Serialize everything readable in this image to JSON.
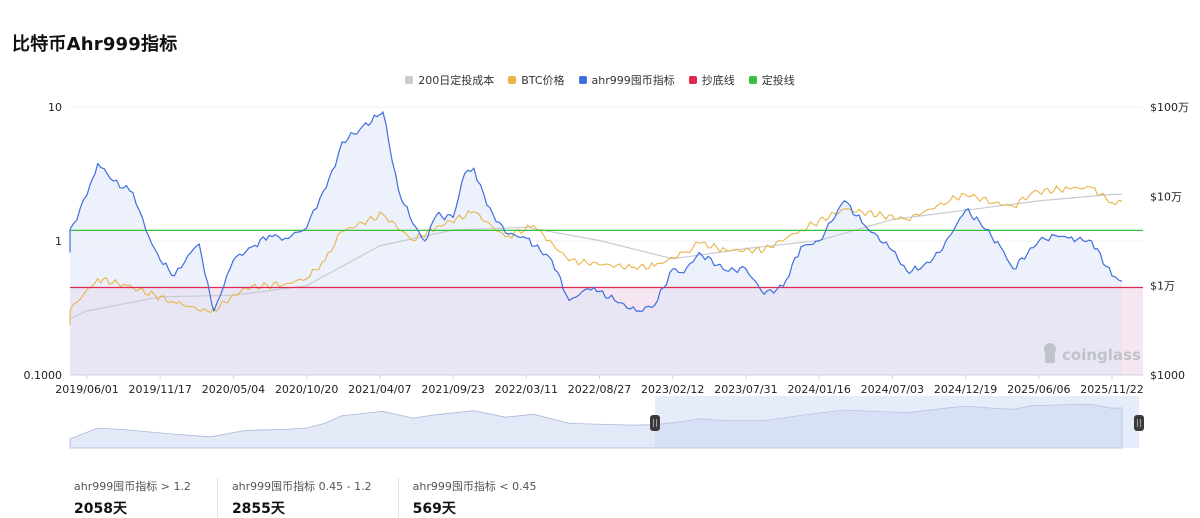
{
  "page": {
    "title": "比特币Ahr999指标"
  },
  "legend": [
    {
      "label": "200日定投成本",
      "color": "#c8ccd2"
    },
    {
      "label": "BTC价格",
      "color": "#e8b54a"
    },
    {
      "label": "ahr999囤币指标",
      "color": "#3f6fdc"
    },
    {
      "label": "抄底线",
      "color": "#e0294f"
    },
    {
      "label": "定投线",
      "color": "#3cbf3c"
    }
  ],
  "watermark": "coinglass",
  "stats": [
    {
      "label": "ahr999囤币指标 > 1.2",
      "value": "2058天"
    },
    {
      "label": "ahr999囤币指标 0.45 - 1.2",
      "value": "2855天"
    },
    {
      "label": "ahr999囤币指标 < 0.45",
      "value": "569天"
    }
  ],
  "chart_data": {
    "type": "line",
    "x_tick_labels": [
      "2019/06/01",
      "2019/11/17",
      "2020/05/04",
      "2020/10/20",
      "2021/04/07",
      "2021/09/23",
      "2022/03/11",
      "2022/08/27",
      "2023/02/12",
      "2023/07/31",
      "2024/01/16",
      "2024/07/03",
      "2024/12/19",
      "2025/06/06",
      "2025/11/22"
    ],
    "y_left": {
      "scale": "log",
      "range": [
        0.1,
        10
      ],
      "tick_labels": [
        "10",
        "1",
        "0.1000"
      ]
    },
    "y_right": {
      "scale": "log",
      "range": [
        1000,
        1000000
      ],
      "tick_labels": [
        "$100万",
        "$10万",
        "$1万",
        "$1000"
      ]
    },
    "reference_lines": [
      {
        "name": "定投线",
        "value": 1.2,
        "axis": "left"
      },
      {
        "name": "抄底线",
        "value": 0.45,
        "axis": "left"
      }
    ],
    "series": [
      {
        "name": "ahr999囤币指标",
        "axis": "left",
        "x": [
          "2019/01/01",
          "2019/03/15",
          "2019/05/01",
          "2019/06/01",
          "2019/06/26",
          "2019/08/01",
          "2019/09/15",
          "2019/10/15",
          "2019/11/17",
          "2019/12/20",
          "2020/01/20",
          "2020/02/15",
          "2020/03/12",
          "2020/03/20",
          "2020/05/04",
          "2020/06/15",
          "2020/07/25",
          "2020/09/01",
          "2020/10/20",
          "2020/11/20",
          "2020/12/25",
          "2021/01/10",
          "2021/02/20",
          "2021/04/07",
          "2021/04/14",
          "2021/05/20",
          "2021/06/22",
          "2021/07/20",
          "2021/08/15",
          "2021/09/23",
          "2021/10/20",
          "2021/11/10",
          "2021/12/10",
          "2022/01/22",
          "2022/03/11",
          "2022/05/09",
          "2022/06/18",
          "2022/08/01",
          "2022/08/27",
          "2022/10/01",
          "2022/11/20",
          "2023/01/01",
          "2023/02/12",
          "2023/03/10",
          "2023/04/14",
          "2023/06/15",
          "2023/07/31",
          "2023/09/11",
          "2023/10/25",
          "2023/12/05",
          "2024/01/16",
          "2024/03/14",
          "2024/05/01",
          "2024/07/03",
          "2024/08/05",
          "2024/09/06",
          "2024/10/20",
          "2024/12/19",
          "2025/01/20",
          "2025/03/10",
          "2025/04/08",
          "2025/06/06",
          "2025/07/14",
          "2025/08/14",
          "2025/10/06",
          "2025/11/22",
          "2025/12/15"
        ],
        "values": [
          0.85,
          0.88,
          1.35,
          2.2,
          3.8,
          2.8,
          2.3,
          1.2,
          0.72,
          0.55,
          0.78,
          0.95,
          0.38,
          0.3,
          0.72,
          0.9,
          1.1,
          1.05,
          1.25,
          2.1,
          3.6,
          5.5,
          6.8,
          8.8,
          9.2,
          2.4,
          1.35,
          1.0,
          1.55,
          1.5,
          3.2,
          3.5,
          1.85,
          1.15,
          1.05,
          0.72,
          0.36,
          0.44,
          0.42,
          0.36,
          0.3,
          0.33,
          0.62,
          0.58,
          0.82,
          0.6,
          0.62,
          0.4,
          0.46,
          0.9,
          1.0,
          2.0,
          1.3,
          0.85,
          0.6,
          0.62,
          0.82,
          1.7,
          1.4,
          0.9,
          0.62,
          1.0,
          1.1,
          1.05,
          1.0,
          0.55,
          0.5
        ]
      },
      {
        "name": "BTC价格",
        "axis": "right",
        "x": [
          "2019/01/01",
          "2019/04/01",
          "2019/06/26",
          "2019/09/01",
          "2019/12/17",
          "2020/03/12",
          "2020/06/01",
          "2020/09/01",
          "2020/10/20",
          "2020/12/01",
          "2021/01/08",
          "2021/04/14",
          "2021/06/22",
          "2021/08/15",
          "2021/11/10",
          "2022/01/22",
          "2022/03/28",
          "2022/05/12",
          "2022/06/18",
          "2022/11/09",
          "2023/01/01",
          "2023/03/15",
          "2023/04/14",
          "2023/06/15",
          "2023/09/11",
          "2023/12/05",
          "2024/03/14",
          "2024/08/05",
          "2024/11/13",
          "2024/12/17",
          "2025/02/25",
          "2025/04/08",
          "2025/05/22",
          "2025/08/14",
          "2025/10/06",
          "2025/11/22",
          "2025/12/15"
        ],
        "values": [
          3700,
          4100,
          12000,
          10000,
          6600,
          5000,
          9500,
          10500,
          12000,
          19000,
          40000,
          63000,
          32000,
          45000,
          67000,
          35000,
          47000,
          29000,
          19000,
          16000,
          16500,
          24000,
          30000,
          25000,
          25000,
          42000,
          72000,
          55000,
          90000,
          106000,
          85000,
          77000,
          110000,
          123000,
          125000,
          85000,
          88000
        ]
      },
      {
        "name": "200日定投成本",
        "axis": "right",
        "x": [
          "2019/01/01",
          "2019/06/01",
          "2019/11/17",
          "2020/05/04",
          "2020/10/20",
          "2021/04/07",
          "2021/09/23",
          "2022/03/11",
          "2022/08/27",
          "2023/02/12",
          "2023/07/31",
          "2024/01/16",
          "2024/07/03",
          "2024/12/19",
          "2025/06/06",
          "2025/11/22",
          "2025/12/15"
        ],
        "values": [
          4300,
          5200,
          7500,
          7800,
          10000,
          28000,
          42000,
          45000,
          32000,
          20000,
          26000,
          32000,
          55000,
          70000,
          89000,
          105000,
          105000
        ]
      }
    ]
  }
}
